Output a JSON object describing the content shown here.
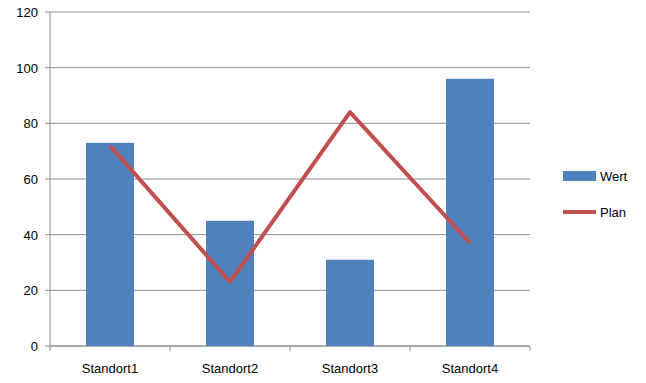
{
  "chart_data": {
    "type": "bar",
    "categories": [
      "Standort1",
      "Standort2",
      "Standort3",
      "Standort4"
    ],
    "series": [
      {
        "name": "Wert",
        "type": "bar",
        "color": "#4f81bd",
        "values": [
          73,
          45,
          31,
          96
        ]
      },
      {
        "name": "Plan",
        "type": "line",
        "color": "#c0504d",
        "values": [
          72,
          23,
          84,
          37
        ]
      }
    ],
    "ylim": [
      0,
      120
    ],
    "yticks": [
      0,
      20,
      40,
      60,
      80,
      100,
      120
    ],
    "grid": true,
    "legend": "right"
  }
}
